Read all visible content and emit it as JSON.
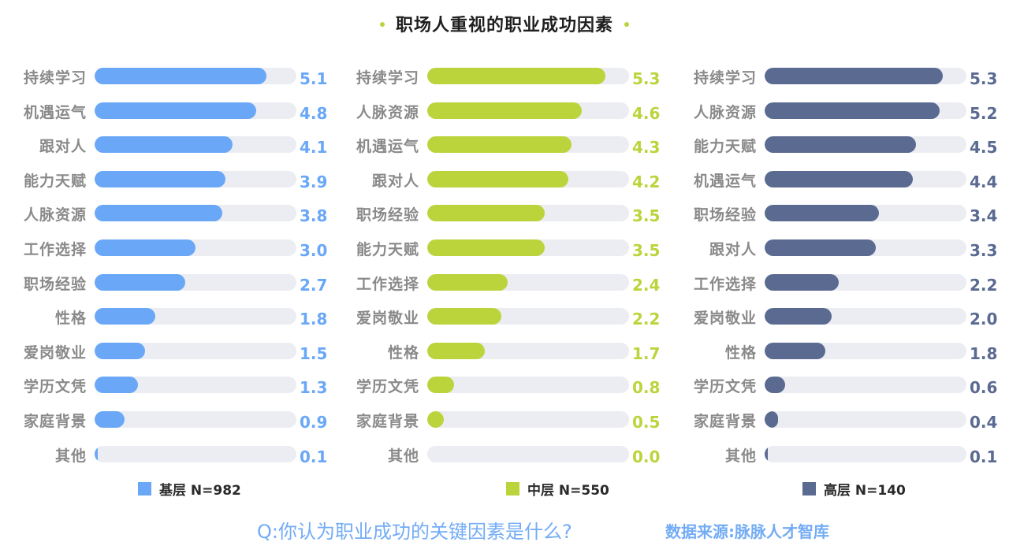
{
  "chart_data": {
    "type": "bar",
    "orientation": "horizontal",
    "title": "职场人重视的职业成功因素",
    "xlim": [
      0,
      6
    ],
    "colors": {
      "dot": "#bcd43c",
      "track": "#ecedf2"
    },
    "panels": [
      {
        "legend": "基层 N=982",
        "color": "#6aa8f7",
        "categories": [
          "持续学习",
          "机遇运气",
          "跟对人",
          "能力天赋",
          "人脉资源",
          "工作选择",
          "职场经验",
          "性格",
          "爱岗敬业",
          "学历文凭",
          "家庭背景",
          "其他"
        ],
        "values": [
          5.1,
          4.8,
          4.1,
          3.9,
          3.8,
          3.0,
          2.7,
          1.8,
          1.5,
          1.3,
          0.9,
          0.1
        ],
        "labels": [
          "5.1",
          "4.8",
          "4.1",
          "3.9",
          "3.8",
          "3.0",
          "2.7",
          "1.8",
          "1.5",
          "1.3",
          "0.9",
          "0.1"
        ]
      },
      {
        "legend": "中层 N=550",
        "color": "#bcd43c",
        "categories": [
          "持续学习",
          "人脉资源",
          "机遇运气",
          "跟对人",
          "职场经验",
          "能力天赋",
          "工作选择",
          "爱岗敬业",
          "性格",
          "学历文凭",
          "家庭背景",
          "其他"
        ],
        "values": [
          5.3,
          4.6,
          4.3,
          4.2,
          3.5,
          3.5,
          2.4,
          2.2,
          1.7,
          0.8,
          0.5,
          0.0
        ],
        "labels": [
          "5.3",
          "4.6",
          "4.3",
          "4.2",
          "3.5",
          "3.5",
          "2.4",
          "2.2",
          "1.7",
          "0.8",
          "0.5",
          "0.0"
        ]
      },
      {
        "legend": "高层 N=140",
        "color": "#5a6a91",
        "categories": [
          "持续学习",
          "人脉资源",
          "能力天赋",
          "机遇运气",
          "职场经验",
          "跟对人",
          "工作选择",
          "爱岗敬业",
          "性格",
          "学历文凭",
          "家庭背景",
          "其他"
        ],
        "values": [
          5.3,
          5.2,
          4.5,
          4.4,
          3.4,
          3.3,
          2.2,
          2.0,
          1.8,
          0.6,
          0.4,
          0.1
        ],
        "labels": [
          "5.3",
          "5.2",
          "4.5",
          "4.4",
          "3.4",
          "3.3",
          "2.2",
          "2.0",
          "1.8",
          "0.6",
          "0.4",
          "0.1"
        ]
      }
    ]
  },
  "footer": {
    "question": "Q:你认为职业成功的关键因素是什么?",
    "source": "数据来源:脉脉人才智库"
  }
}
